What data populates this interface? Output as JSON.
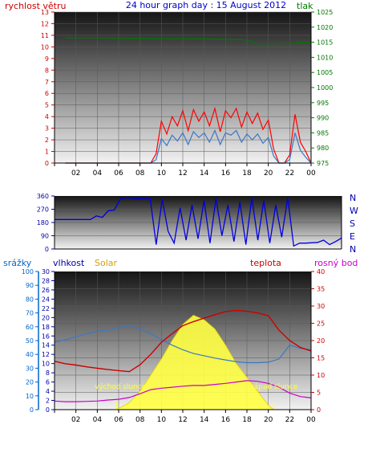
{
  "title": "24 hour graph day : 15 August 2012",
  "colors": {
    "wind": "#ff0000",
    "gust": "#3a78c8",
    "pressure": "#007700",
    "direction": "#0000dd",
    "rain": "#0066cc",
    "humidity": "#0000aa",
    "solar": "#ffff44",
    "solar_label": "#d4a000",
    "temperature": "#cc0000",
    "dewpoint": "#cc00cc",
    "axis": "#000000"
  },
  "chart_data": [
    {
      "type": "line",
      "panel": "wind-pressure",
      "left_axis_label": "rychlost větru",
      "right_axis_label": "tlak",
      "x_ticks": [
        "02",
        "04",
        "06",
        "08",
        "10",
        "12",
        "14",
        "16",
        "18",
        "20",
        "22",
        "00"
      ],
      "ylim_left": [
        0,
        13
      ],
      "left_ticks": [
        0,
        1,
        2,
        3,
        4,
        5,
        6,
        7,
        8,
        9,
        10,
        11,
        12,
        13
      ],
      "ylim_right": [
        975,
        1025
      ],
      "right_ticks": [
        975,
        980,
        985,
        990,
        995,
        1000,
        1005,
        1010,
        1015,
        1020,
        1025
      ],
      "series": [
        {
          "role": "pressure",
          "x": [
            1,
            3,
            6,
            8,
            10,
            12,
            14,
            16,
            18,
            19,
            20,
            22,
            23,
            24
          ],
          "y": [
            1016.5,
            1016.5,
            1016.4,
            1016.3,
            1016.2,
            1016.2,
            1016.1,
            1016.0,
            1015.8,
            1014.5,
            1014.5,
            1014.6,
            1015,
            1015
          ]
        },
        {
          "role": "wind",
          "x": [
            1,
            8,
            9,
            9.5,
            10,
            10.5,
            11,
            11.5,
            12,
            12.5,
            13,
            13.5,
            14,
            14.5,
            15,
            15.5,
            16,
            16.5,
            17,
            17.5,
            18,
            18.5,
            19,
            19.5,
            20,
            20.5,
            21,
            21.5,
            22,
            22.5,
            23,
            23.5,
            24
          ],
          "y": [
            0,
            0,
            0,
            0.8,
            3.6,
            2.5,
            4.0,
            3.2,
            4.5,
            2.8,
            4.6,
            3.6,
            4.4,
            3.2,
            4.7,
            2.7,
            4.5,
            3.9,
            4.7,
            3.1,
            4.4,
            3.4,
            4.3,
            2.9,
            3.7,
            1.2,
            0,
            0,
            0.7,
            4.2,
            1.8,
            1.0,
            0
          ]
        },
        {
          "role": "gust",
          "x": [
            1,
            8,
            9,
            9.5,
            10,
            10.5,
            11,
            11.5,
            12,
            12.5,
            13,
            13.5,
            14,
            14.5,
            15,
            15.5,
            16,
            16.5,
            17,
            17.5,
            18,
            18.5,
            19,
            19.5,
            20,
            20.5,
            21,
            21.5,
            22,
            22.5,
            23,
            23.5,
            24
          ],
          "y": [
            0,
            0,
            0,
            0.3,
            2.1,
            1.5,
            2.4,
            1.9,
            2.6,
            1.6,
            2.7,
            2.2,
            2.6,
            1.8,
            2.8,
            1.6,
            2.6,
            2.4,
            2.8,
            1.8,
            2.5,
            2.0,
            2.5,
            1.7,
            2.2,
            0.6,
            0,
            0,
            0.3,
            2.6,
            1.1,
            0.5,
            0
          ]
        }
      ]
    },
    {
      "type": "line",
      "panel": "wind-direction",
      "ylim": [
        0,
        360
      ],
      "left_ticks": [
        0,
        90,
        180,
        270,
        360
      ],
      "right_labels": [
        "N",
        "W",
        "S",
        "E",
        "N"
      ],
      "series": [
        {
          "role": "direction",
          "x": [
            0,
            1,
            2,
            3,
            3.5,
            4,
            4.5,
            5,
            5.5,
            6,
            7,
            7.5,
            8,
            8.5,
            9,
            9.5,
            10,
            10.5,
            11,
            11.5,
            12,
            12.5,
            13,
            13.5,
            14,
            14.5,
            15,
            15.5,
            16,
            16.5,
            17,
            17.5,
            18,
            18.5,
            19,
            19.5,
            20,
            20.5,
            21,
            22,
            22.5,
            23,
            23.5,
            24
          ],
          "y": [
            200,
            200,
            200,
            200,
            225,
            215,
            260,
            265,
            340,
            350,
            340,
            345,
            345,
            30,
            340,
            120,
            40,
            280,
            60,
            300,
            70,
            330,
            40,
            345,
            90,
            300,
            50,
            320,
            30,
            350,
            60,
            330,
            40,
            300,
            80,
            350,
            20,
            40,
            40,
            45,
            60,
            30,
            50,
            75
          ]
        }
      ]
    },
    {
      "type": "line",
      "panel": "temperature-humidity",
      "labels": {
        "rain": "srážky",
        "humidity": "vlhkost",
        "solar": "Solar",
        "temperature": "teplota",
        "dewpoint": "rosný bod",
        "sunrise": "východ slunce",
        "sunset": "západ slunce"
      },
      "ylim_rain": [
        0,
        100
      ],
      "rain_ticks": [
        0,
        10,
        20,
        30,
        40,
        50,
        60,
        70,
        80,
        90,
        100
      ],
      "ylim_humidity": [
        0,
        30
      ],
      "humidity_ticks": [
        0,
        2,
        4,
        6,
        8,
        10,
        12,
        14,
        16,
        18,
        20,
        22,
        24,
        26,
        28,
        30
      ],
      "ylim_temp": [
        0,
        40
      ],
      "temp_ticks": [
        0,
        5,
        10,
        15,
        20,
        25,
        30,
        35,
        40
      ],
      "sunrise_x": 5.8,
      "sunset_x": 20.5,
      "series": [
        {
          "role": "solar",
          "x": [
            5.8,
            7,
            8,
            9,
            10,
            11,
            12,
            13,
            14,
            15,
            16,
            17,
            18,
            19,
            20,
            20.5
          ],
          "y": [
            0,
            1.5,
            4,
            7.5,
            11,
            15,
            18.5,
            20.5,
            19.5,
            17.5,
            14,
            10,
            7,
            4,
            1,
            0
          ]
        },
        {
          "role": "humidity",
          "x": [
            0,
            1,
            2,
            3,
            4,
            5,
            6,
            7,
            8,
            9,
            10,
            11,
            12,
            13,
            14,
            15,
            16,
            17,
            18,
            19,
            20,
            21,
            22,
            23,
            24
          ],
          "y": [
            14.6,
            15.2,
            15.8,
            16.5,
            17,
            17.3,
            17.8,
            18.3,
            17.5,
            16.5,
            15.2,
            14,
            13,
            12.2,
            11.7,
            11.2,
            10.8,
            10.4,
            10.2,
            10.2,
            10.3,
            11,
            14,
            13.3,
            13
          ]
        },
        {
          "role": "temperature",
          "x": [
            0,
            1,
            2,
            3,
            4,
            5,
            6,
            7,
            8,
            9,
            10,
            11,
            12,
            13,
            14,
            15,
            16,
            17,
            18,
            19,
            20,
            21,
            22,
            23,
            24
          ],
          "y": [
            14,
            13.3,
            12.9,
            12.4,
            12,
            11.6,
            11.3,
            11,
            13,
            16,
            19.5,
            22,
            24.3,
            25.5,
            26.5,
            27.5,
            28.4,
            28.7,
            28.5,
            28,
            27.2,
            23,
            20,
            18,
            17
          ]
        },
        {
          "role": "dewpoint",
          "x": [
            0,
            1,
            2,
            3,
            4,
            5,
            6,
            7,
            8,
            9,
            10,
            11,
            12,
            13,
            14,
            15,
            16,
            17,
            18,
            19,
            20,
            21,
            22,
            23,
            24
          ],
          "y": [
            2.5,
            2.3,
            2.3,
            2.4,
            2.5,
            2.8,
            3,
            3.5,
            4.6,
            5.8,
            6.2,
            6.5,
            6.8,
            7,
            7,
            7.3,
            7.6,
            8,
            8.4,
            8.2,
            7.6,
            6.5,
            4.8,
            3.8,
            3.4
          ]
        }
      ]
    }
  ]
}
